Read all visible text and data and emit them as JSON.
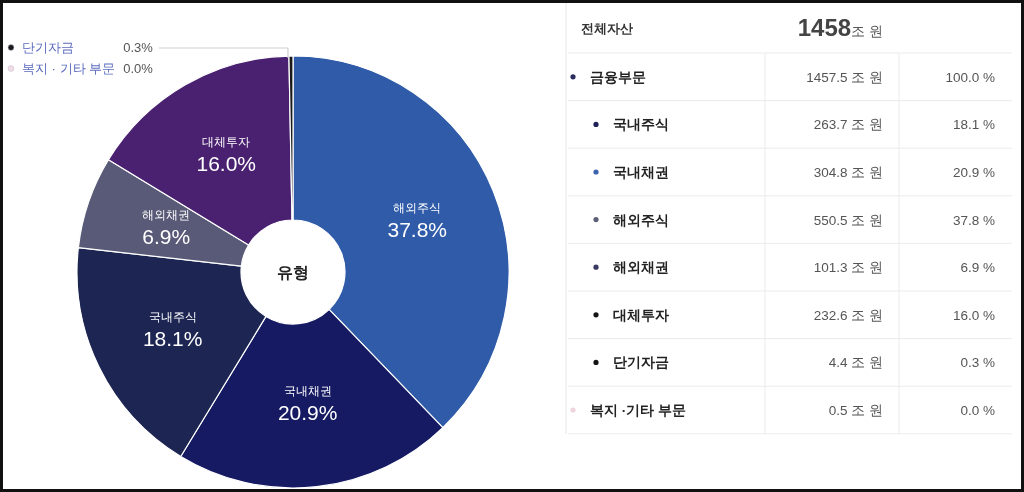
{
  "chart_data": [
    {
      "type": "donut",
      "title": "유형",
      "categories": [
        "해외주식",
        "국내채권",
        "국내주식",
        "해외채권",
        "대체투자",
        "단기자금",
        "복지 · 기타 부문"
      ],
      "values": [
        37.8,
        20.9,
        18.1,
        6.9,
        16.0,
        0.3,
        0.0
      ],
      "value_labels": [
        "37.8%",
        "20.9%",
        "18.1%",
        "6.9%",
        "16.0%",
        "0.3%",
        "0.0%"
      ],
      "colors": [
        "#2f5ba8",
        "#151a63",
        "#1d2653",
        "#595a77",
        "#4a2170",
        "#1a1a1a",
        "#f2dbe2"
      ]
    },
    {
      "type": "other",
      "title": "전체자산",
      "annotations": [
        "1458조 원"
      ],
      "categories": [
        "금융부문",
        "국내주식",
        "국내채권",
        "해외주식",
        "해외채권",
        "대체투자",
        "단기자금",
        "복지 ·기타 부문"
      ],
      "colors": [
        "#2a2d5c",
        "#1f2257",
        "#3d64ad",
        "#5c5f75",
        "#3b3a63",
        "#151515",
        "#151515",
        "#f0d5dd"
      ],
      "series": [
        {
          "values": [
            1457.5,
            263.7,
            304.8,
            550.5,
            101.3,
            232.6,
            4.4,
            0.5
          ],
          "value_labels": [
            "1457.5 조 원",
            "263.7 조 원",
            "304.8 조 원",
            "550.5 조 원",
            "101.3 조 원",
            "232.6 조 원",
            "4.4 조 원",
            "0.5 조 원"
          ]
        },
        {
          "values": [
            100.0,
            18.1,
            20.9,
            37.8,
            6.9,
            16.0,
            0.3,
            0.0
          ],
          "value_labels": [
            "100.0 %",
            "18.1 %",
            "20.9 %",
            "37.8 %",
            "6.9 %",
            "16.0 %",
            "0.3 %",
            "0.0 %"
          ]
        }
      ]
    }
  ]
}
